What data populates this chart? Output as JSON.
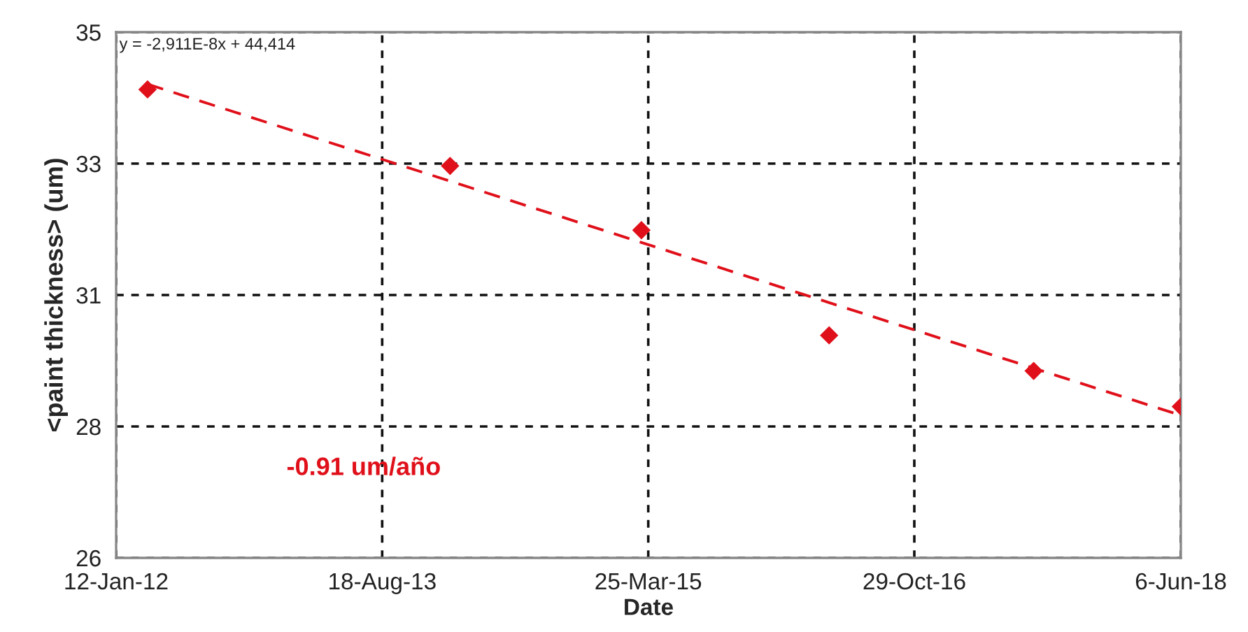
{
  "chart_data": {
    "type": "scatter",
    "xlabel": "Date",
    "ylabel": "<paint thickness> (um)",
    "x": [
      "2012-03-21",
      "2014-01-14",
      "2015-03-10",
      "2016-04-25",
      "2017-07-18",
      "2018-06-06"
    ],
    "series": [
      {
        "color": "#e0101a",
        "marker": "diamond",
        "values": [
          34.02,
          32.71,
          31.61,
          29.81,
          29.2,
          28.59
        ]
      },
      {
        "type": "line",
        "color": "#e0101a",
        "line_style": "dashed",
        "x": [
          "2012-03-21",
          "2018-06-06"
        ],
        "values": [
          34.11,
          28.44
        ]
      }
    ],
    "xlim": [
      "2012-01-12",
      "2018-06-06"
    ],
    "xticks": [
      {
        "value": "2012-01-12",
        "label": "12-Jan-12"
      },
      {
        "value": "2013-08-18",
        "label": "18-Aug-13"
      },
      {
        "value": "2015-03-25",
        "label": "25-Mar-15"
      },
      {
        "value": "2016-10-29",
        "label": "29-Oct-16"
      },
      {
        "value": "2018-06-06",
        "label": "6-Jun-18"
      }
    ],
    "ylim": [
      26,
      35
    ],
    "yticks": [
      26,
      {
        "value": 28.25,
        "label": "28"
      },
      {
        "value": 30.5,
        "label": "31"
      },
      {
        "value": 32.75,
        "label": "33"
      },
      35
    ],
    "grid": true,
    "legend": false,
    "annotations": [
      "y = -2,911E-8x + 44,414",
      "-0.91 um/año"
    ]
  }
}
